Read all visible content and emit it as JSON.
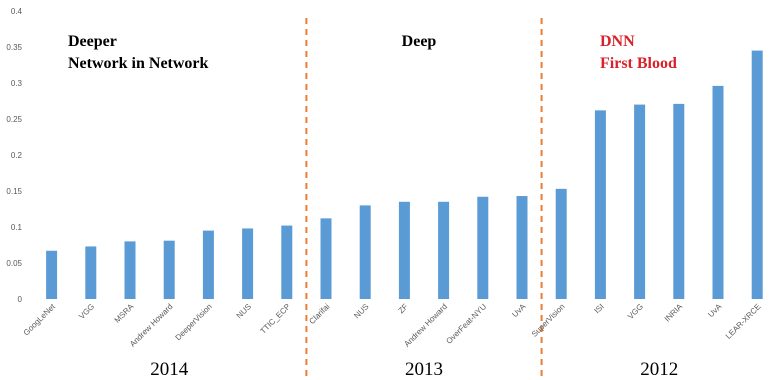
{
  "chart_data": {
    "type": "bar",
    "categories": [
      "GoogLeNet",
      "VGG",
      "MSRA",
      "Andrew Howard",
      "DeeperVision",
      "NUS",
      "TTIC_ECP",
      "Clarifai",
      "NUS",
      "ZF",
      "Andrew Howard",
      "OverFeat-NYU",
      "UvA",
      "SuperVision",
      "ISI",
      "VGG",
      "INRIA",
      "UvA",
      "LEAR-XRCE"
    ],
    "values": [
      0.067,
      0.073,
      0.08,
      0.081,
      0.095,
      0.098,
      0.102,
      0.112,
      0.13,
      0.135,
      0.135,
      0.142,
      0.143,
      0.153,
      0.262,
      0.27,
      0.271,
      0.296,
      0.345
    ],
    "ylim": [
      0,
      0.4
    ],
    "yticks": [
      "0",
      "0.05",
      "0.1",
      "0.15",
      "0.2",
      "0.25",
      "0.3",
      "0.35",
      "0.4"
    ],
    "bar_color": "#5b9bd5",
    "divider_color": "#ed7d31",
    "highlight_color": "#d9212a",
    "grid": false,
    "groups": [
      {
        "year": "2014",
        "label_lines": [
          "Deeper",
          "Network in Network"
        ],
        "start": 0,
        "end": 6
      },
      {
        "year": "2013",
        "label_lines": [
          "Deep"
        ],
        "start": 7,
        "end": 12
      },
      {
        "year": "2012",
        "label_lines": [
          "DNN",
          "First Blood"
        ],
        "start": 13,
        "end": 18,
        "highlight": true
      }
    ]
  }
}
